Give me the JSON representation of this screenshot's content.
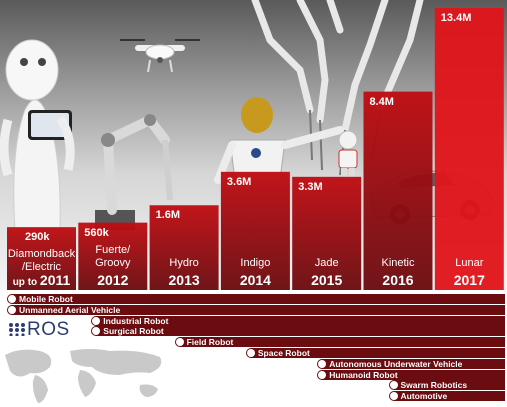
{
  "chart_data": {
    "type": "bar",
    "categories": [
      "2011",
      "2012",
      "2013",
      "2014",
      "2015",
      "2016",
      "2017"
    ],
    "values": [
      290,
      560,
      1600,
      3600,
      3300,
      8400,
      13400
    ],
    "value_labels": [
      "290k",
      "560k",
      "1.6M",
      "3.6M",
      "3.3M",
      "8.4M",
      "13.4M"
    ],
    "distro_names": [
      "Diamondback /Electric",
      "Fuerte/ Groovy",
      "Hydro",
      "Indigo",
      "Jade",
      "Kinetic",
      "Lunar"
    ],
    "year_labels": [
      "2011",
      "2012",
      "2013",
      "2014",
      "2015",
      "2016",
      "2017"
    ],
    "year_prefix": "up to",
    "title": "",
    "xlabel": "",
    "ylabel": "",
    "ylim": [
      0,
      13400
    ],
    "grid": false,
    "colors": {
      "bar_top": "#c00d12",
      "bar_bottom": "#6a0c10",
      "highlight": "#e0151b"
    }
  },
  "timeline": {
    "brand": "ROS",
    "row_color": "#6a0c10",
    "items": [
      {
        "label": "Mobile Robot",
        "start_year": "2011"
      },
      {
        "label": "Unmanned Aerial Vehicle",
        "start_year": "2011"
      },
      {
        "label": "Industrial Robot",
        "start_year": "2012"
      },
      {
        "label": "Surgical Robot",
        "start_year": "2012"
      },
      {
        "label": "Field Robot",
        "start_year": "2013"
      },
      {
        "label": "Space Robot",
        "start_year": "2014"
      },
      {
        "label": "Autonomous Underwater Vehicle",
        "start_year": "2015"
      },
      {
        "label": "Humanoid Robot",
        "start_year": "2015"
      },
      {
        "label": "Swarm Robotics",
        "start_year": "2016"
      },
      {
        "label": "Automotive",
        "start_year": "2016"
      }
    ]
  },
  "icons": [
    "pepper-robot-icon",
    "drone-icon",
    "industrial-arm-icon",
    "surgical-robot-icon",
    "space-robot-icon",
    "humanoid-robot-icon",
    "car-icon",
    "ros-logo-icon",
    "world-map-icon"
  ]
}
